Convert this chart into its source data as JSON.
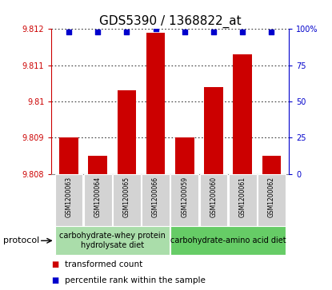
{
  "title": "GDS5390 / 1368822_at",
  "samples": [
    "GSM1200063",
    "GSM1200064",
    "GSM1200065",
    "GSM1200066",
    "GSM1200059",
    "GSM1200060",
    "GSM1200061",
    "GSM1200062"
  ],
  "bar_values": [
    9.809,
    9.8085,
    9.8103,
    9.8119,
    9.809,
    9.8104,
    9.8113,
    9.8085
  ],
  "percentile_values": [
    98,
    98,
    98,
    100,
    98,
    98,
    98,
    98
  ],
  "bar_base": 9.808,
  "ylim_left": [
    9.808,
    9.812
  ],
  "ylim_right": [
    0,
    100
  ],
  "yticks_left": [
    9.808,
    9.809,
    9.81,
    9.811,
    9.812
  ],
  "yticks_right": [
    0,
    25,
    50,
    75,
    100
  ],
  "ytick_labels_left": [
    "9.808",
    "9.809",
    "9.81",
    "9.811",
    "9.812"
  ],
  "ytick_labels_right": [
    "0",
    "25",
    "50",
    "75",
    "100%"
  ],
  "bar_color": "#cc0000",
  "dot_color": "#0000cc",
  "axis_left_color": "#cc0000",
  "axis_right_color": "#0000cc",
  "protocol_groups": [
    {
      "label": "carbohydrate-whey protein\nhydrolysate diet",
      "start": 0,
      "end": 3,
      "color": "#aaddaa"
    },
    {
      "label": "carbohydrate-amino acid diet",
      "start": 4,
      "end": 7,
      "color": "#66cc66"
    }
  ],
  "protocol_label": "protocol",
  "legend_items": [
    {
      "label": "transformed count",
      "color": "#cc0000"
    },
    {
      "label": "percentile rank within the sample",
      "color": "#0000cc"
    }
  ],
  "bar_width": 0.65,
  "tick_label_bg": "#d3d3d3",
  "fontsize_title": 11,
  "fontsize_ticks": 7,
  "fontsize_legend": 7.5,
  "fontsize_protocol": 7,
  "fontsize_sample": 5.5
}
